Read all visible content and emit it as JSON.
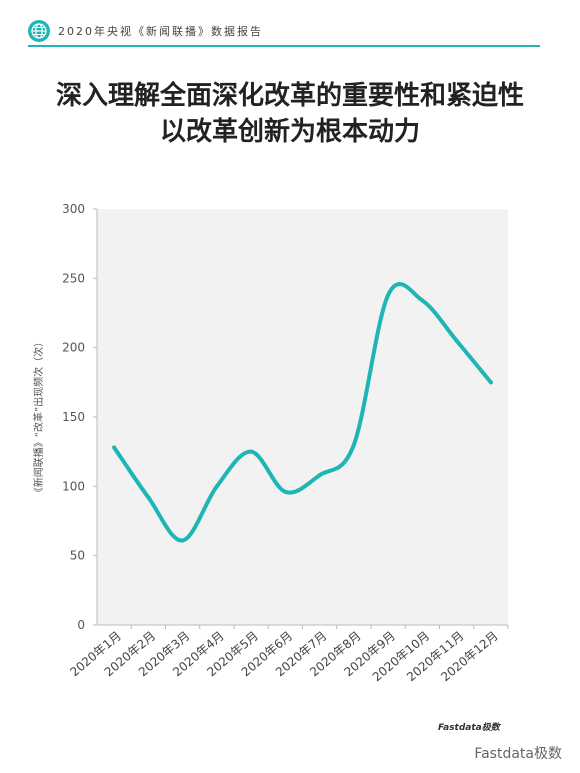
{
  "header": {
    "text": "2020年央视《新闻联播》数据报告",
    "icon": "globe-icon",
    "accent_color": "#1fb5b5"
  },
  "title": {
    "line1": "深入理解全面深化改革的重要性和紧迫性",
    "line2": "以改革创新为根本动力"
  },
  "chart_data": {
    "type": "line",
    "title": "",
    "ylabel": "《新闻联播》“改革”出现频次（次）",
    "xlabel": "",
    "categories": [
      "2020年1月",
      "2020年2月",
      "2020年3月",
      "2020年4月",
      "2020年5月",
      "2020年6月",
      "2020年7月",
      "2020年8月",
      "2020年9月",
      "2020年10月",
      "2020年11月",
      "2020年12月"
    ],
    "values": [
      128,
      92,
      61,
      100,
      125,
      96,
      108,
      130,
      238,
      234,
      205,
      175
    ],
    "ylim": [
      0,
      300
    ],
    "yticks": [
      0,
      50,
      100,
      150,
      200,
      250,
      300
    ],
    "grid": false,
    "line_color": "#1fb5b5",
    "plot_background": "#f2f2f2"
  },
  "logo": "Fastdata极数",
  "watermark": "Fastdata极数"
}
